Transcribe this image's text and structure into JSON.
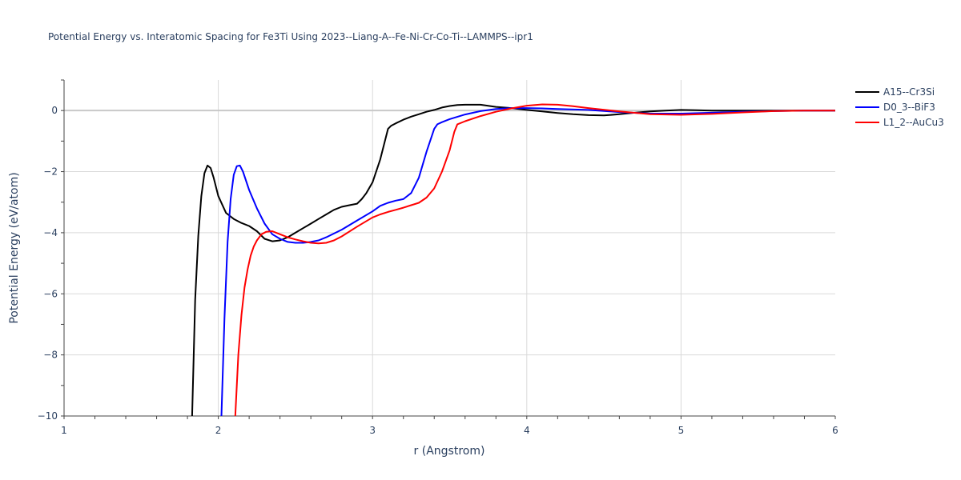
{
  "chart_data": {
    "type": "line",
    "title": "Potential Energy vs. Interatomic Spacing for Fe3Ti Using 2023--Liang-A--Fe-Ni-Cr-Co-Ti--LAMMPS--ipr1",
    "xlabel": "r (Angstrom)",
    "ylabel": "Potential Energy (eV/atom)",
    "xlim": [
      1,
      6
    ],
    "ylim": [
      -10,
      1
    ],
    "xticks": [
      1,
      2,
      3,
      4,
      5,
      6
    ],
    "yticks": [
      -10,
      -8,
      -6,
      -4,
      -2,
      0
    ],
    "grid": true,
    "legend": "top-right",
    "series": [
      {
        "name": "A15--Cr3Si",
        "color": "#000000",
        "x": [
          1.83,
          1.85,
          1.87,
          1.89,
          1.91,
          1.93,
          1.95,
          1.97,
          2.0,
          2.05,
          2.1,
          2.15,
          2.2,
          2.25,
          2.3,
          2.35,
          2.4,
          2.45,
          2.5,
          2.55,
          2.6,
          2.65,
          2.7,
          2.75,
          2.8,
          2.85,
          2.9,
          2.93,
          2.96,
          3.0,
          3.05,
          3.1,
          3.12,
          3.15,
          3.2,
          3.25,
          3.3,
          3.35,
          3.4,
          3.45,
          3.5,
          3.55,
          3.6,
          3.7,
          3.8,
          3.9,
          4.0,
          4.1,
          4.2,
          4.3,
          4.4,
          4.5,
          4.6,
          4.7,
          4.8,
          4.9,
          5.0,
          5.1,
          5.2,
          5.4,
          5.6,
          5.8,
          6.0
        ],
        "y": [
          -10.0,
          -6.2,
          -4.1,
          -2.8,
          -2.05,
          -1.8,
          -1.88,
          -2.2,
          -2.8,
          -3.35,
          -3.55,
          -3.68,
          -3.78,
          -3.95,
          -4.2,
          -4.28,
          -4.25,
          -4.15,
          -4.0,
          -3.85,
          -3.7,
          -3.55,
          -3.4,
          -3.25,
          -3.15,
          -3.1,
          -3.05,
          -2.9,
          -2.7,
          -2.35,
          -1.6,
          -0.6,
          -0.5,
          -0.42,
          -0.3,
          -0.2,
          -0.12,
          -0.04,
          0.02,
          0.1,
          0.15,
          0.18,
          0.19,
          0.19,
          0.12,
          0.08,
          0.02,
          -0.03,
          -0.08,
          -0.12,
          -0.15,
          -0.16,
          -0.12,
          -0.07,
          -0.03,
          0.0,
          0.02,
          0.01,
          0.0,
          0.0,
          0.0,
          0.0,
          0.0
        ]
      },
      {
        "name": "D0_3--BiF3",
        "color": "#0000ff",
        "x": [
          2.02,
          2.04,
          2.06,
          2.08,
          2.1,
          2.12,
          2.14,
          2.16,
          2.2,
          2.25,
          2.3,
          2.35,
          2.4,
          2.45,
          2.5,
          2.55,
          2.6,
          2.65,
          2.7,
          2.8,
          2.9,
          3.0,
          3.05,
          3.1,
          3.15,
          3.2,
          3.25,
          3.3,
          3.35,
          3.4,
          3.42,
          3.45,
          3.5,
          3.6,
          3.7,
          3.8,
          3.9,
          4.0,
          4.1,
          4.2,
          4.4,
          4.6,
          4.8,
          5.0,
          5.2,
          5.4,
          5.6,
          5.8,
          6.0
        ],
        "y": [
          -10.0,
          -6.8,
          -4.3,
          -2.9,
          -2.1,
          -1.82,
          -1.8,
          -2.0,
          -2.6,
          -3.2,
          -3.7,
          -4.05,
          -4.2,
          -4.3,
          -4.33,
          -4.33,
          -4.3,
          -4.25,
          -4.15,
          -3.9,
          -3.6,
          -3.3,
          -3.12,
          -3.02,
          -2.95,
          -2.9,
          -2.7,
          -2.2,
          -1.35,
          -0.6,
          -0.45,
          -0.38,
          -0.28,
          -0.13,
          -0.02,
          0.05,
          0.08,
          0.08,
          0.07,
          0.05,
          0.02,
          -0.05,
          -0.1,
          -0.1,
          -0.07,
          -0.04,
          -0.02,
          0.0,
          0.0
        ]
      },
      {
        "name": "L1_2--AuCu3",
        "color": "#ff0000",
        "x": [
          2.11,
          2.13,
          2.15,
          2.17,
          2.19,
          2.21,
          2.23,
          2.25,
          2.28,
          2.31,
          2.35,
          2.4,
          2.45,
          2.5,
          2.55,
          2.6,
          2.65,
          2.7,
          2.75,
          2.8,
          2.9,
          3.0,
          3.05,
          3.1,
          3.15,
          3.2,
          3.25,
          3.3,
          3.35,
          3.4,
          3.45,
          3.5,
          3.53,
          3.55,
          3.6,
          3.7,
          3.8,
          3.9,
          4.0,
          4.1,
          4.2,
          4.3,
          4.4,
          4.6,
          4.8,
          5.0,
          5.2,
          5.4,
          5.6,
          5.8,
          6.0
        ],
        "y": [
          -10.0,
          -8.0,
          -6.7,
          -5.8,
          -5.2,
          -4.75,
          -4.45,
          -4.25,
          -4.05,
          -3.97,
          -3.95,
          -4.05,
          -4.15,
          -4.22,
          -4.28,
          -4.33,
          -4.35,
          -4.33,
          -4.25,
          -4.12,
          -3.8,
          -3.5,
          -3.4,
          -3.32,
          -3.25,
          -3.18,
          -3.1,
          -3.02,
          -2.85,
          -2.55,
          -2.0,
          -1.3,
          -0.7,
          -0.45,
          -0.35,
          -0.18,
          -0.04,
          0.07,
          0.16,
          0.2,
          0.19,
          0.14,
          0.08,
          -0.03,
          -0.12,
          -0.14,
          -0.11,
          -0.06,
          -0.02,
          0.0,
          0.0
        ]
      }
    ]
  }
}
